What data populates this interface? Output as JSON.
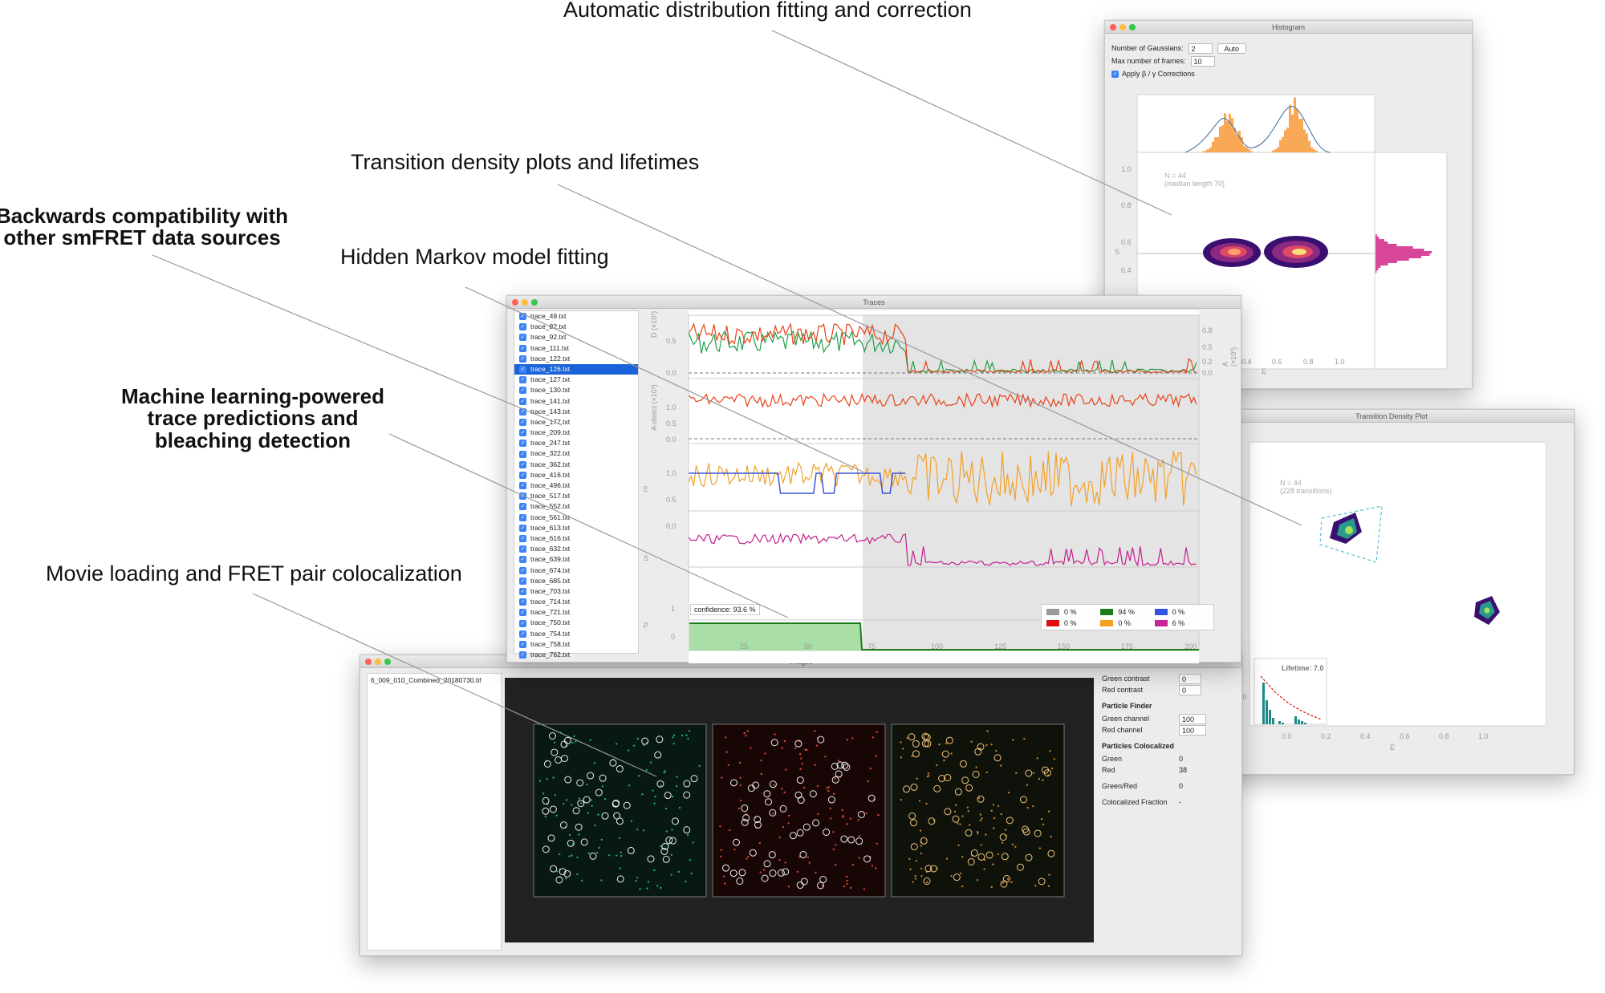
{
  "callouts": {
    "distribution": "Automatic distribution fitting and correction",
    "tdp": "Transition density plots and lifetimes",
    "backwards": "Backwards compatibility with\nother smFRET data sources",
    "hmm": "Hidden Markov model fitting",
    "ml": "Machine learning-powered\ntrace predictions and\nbleaching detection",
    "movie": "Movie loading and FRET pair colocalization"
  },
  "histogram_window": {
    "title": "Histogram",
    "num_gaussians_label": "Number of Gaussians:",
    "num_gaussians_value": "2",
    "auto_button": "Auto",
    "max_frames_label": "Max number of frames:",
    "max_frames_value": "10",
    "apply_corrections_label": "Apply β / γ Corrections",
    "n_label": "N = 44",
    "median_label": "(median length 70)",
    "y_ticks": [
      "1.0",
      "0.8",
      "0.6",
      "0.4"
    ],
    "x_ticks": [
      "0.4",
      "0.6",
      "0.8",
      "1.0"
    ],
    "x_label": "E",
    "y_label": "S"
  },
  "tdp_window": {
    "title": "Transition Density Plot",
    "n_label": "N = 44",
    "transitions_label": "(228 transitions)",
    "lifetime_label": "Lifetime: 7.0",
    "x_ticks": [
      "0.0",
      "0.2",
      "0.4",
      "0.6",
      "0.8",
      "1.0"
    ],
    "y_tick": "0.0",
    "x_label": "E"
  },
  "traces_window": {
    "title": "Traces",
    "selected_index": 5,
    "traces": [
      "trace_49.txt",
      "trace_82.txt",
      "trace_92.txt",
      "trace_111.txt",
      "trace_122.txt",
      "trace_126.txt",
      "trace_127.txt",
      "trace_130.txt",
      "trace_141.txt",
      "trace_143.txt",
      "trace_177.txt",
      "trace_209.txt",
      "trace_247.txt",
      "trace_322.txt",
      "trace_362.txt",
      "trace_416.txt",
      "trace_496.txt",
      "trace_517.txt",
      "trace_552.txt",
      "trace_561.txt",
      "trace_613.txt",
      "trace_616.txt",
      "trace_632.txt",
      "trace_639.txt",
      "trace_674.txt",
      "trace_685.txt",
      "trace_703.txt",
      "trace_714.txt",
      "trace_721.txt",
      "trace_750.txt",
      "trace_754.txt",
      "trace_758.txt",
      "trace_762.txt"
    ],
    "panel_labels": [
      "D (×10³)",
      "A-direct (×10³)",
      "E",
      "S",
      "P"
    ],
    "right_label": "A (×10³)",
    "panel1_ticks_left": [
      "0.5",
      "0.0"
    ],
    "panel1_ticks_right": [
      "0.8",
      "0.5",
      "0.2",
      "0.0"
    ],
    "panel2_ticks": [
      "1.0",
      "0.5",
      "0.0"
    ],
    "panel3_ticks": [
      "1.0",
      "0.5",
      "0.0"
    ],
    "panel5_ticks": [
      "1",
      "0"
    ],
    "x_ticks": [
      "25",
      "50",
      "75",
      "100",
      "125",
      "150",
      "175",
      "200"
    ],
    "confidence_label": "confidence: 93.6 %",
    "legend": [
      {
        "color": "#9a9a9a",
        "value": "0 %"
      },
      {
        "color": "#1a7d1a",
        "value": "94 %"
      },
      {
        "color": "#3355dd",
        "value": "0 %"
      },
      {
        "color": "#e01010",
        "value": "0 %"
      },
      {
        "color": "#f5a020",
        "value": "0 %"
      },
      {
        "color": "#cc2299",
        "value": "6 %"
      }
    ]
  },
  "movie_window": {
    "title": "Images",
    "file_name": "6_009_010_Combined_20180730.tif",
    "green_contrast_label": "Green contrast",
    "green_contrast_value": "0",
    "red_contrast_label": "Red contrast",
    "red_contrast_value": "0",
    "particle_finder_head": "Particle Finder",
    "green_channel_label": "Green channel",
    "green_channel_value": "100",
    "red_channel_label": "Red channel",
    "red_channel_value": "100",
    "colocalized_head": "Particles Colocalized",
    "green_label": "Green",
    "green_value": "0",
    "red_label": "Red",
    "red_value": "38",
    "green_red_label": "Green/Red",
    "green_red_value": "0",
    "fraction_label": "Colocalized Fraction",
    "fraction_value": "-"
  },
  "colors": {
    "donor": "#1f9f4a",
    "acceptor": "#e8421a",
    "fret": "#f2a02a",
    "stoich": "#c41f8e",
    "hmm": "#3a57d8",
    "selection": "#1a63d8"
  }
}
